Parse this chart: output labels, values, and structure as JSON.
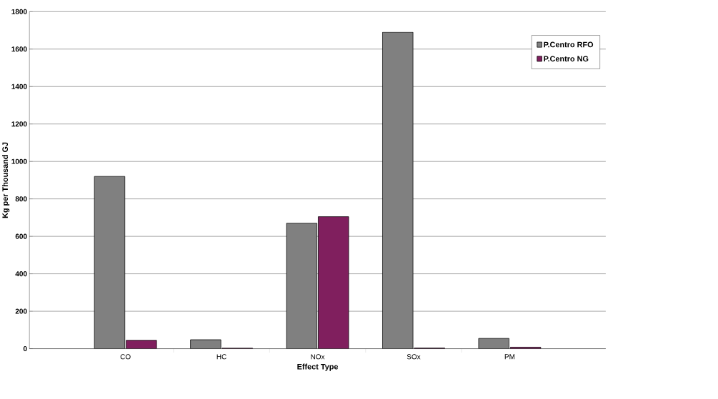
{
  "chart_data": {
    "type": "bar",
    "xlabel": "Effect Type",
    "ylabel": "Kg per Thousand GJ",
    "categories": [
      "CO",
      "HC",
      "NOx",
      "SOx",
      "PM"
    ],
    "series": [
      {
        "name": "P.Centro RFO",
        "color": "#808080",
        "values": [
          920,
          48,
          670,
          1690,
          55
        ]
      },
      {
        "name": "P.Centro NG",
        "color": "#801f5e",
        "values": [
          45,
          3,
          705,
          4,
          8
        ]
      }
    ],
    "ylim": [
      0,
      1800
    ],
    "yticks": [
      0,
      200,
      400,
      600,
      800,
      1000,
      1200,
      1400,
      1600,
      1800
    ],
    "grid": "y",
    "legend": "top right"
  }
}
